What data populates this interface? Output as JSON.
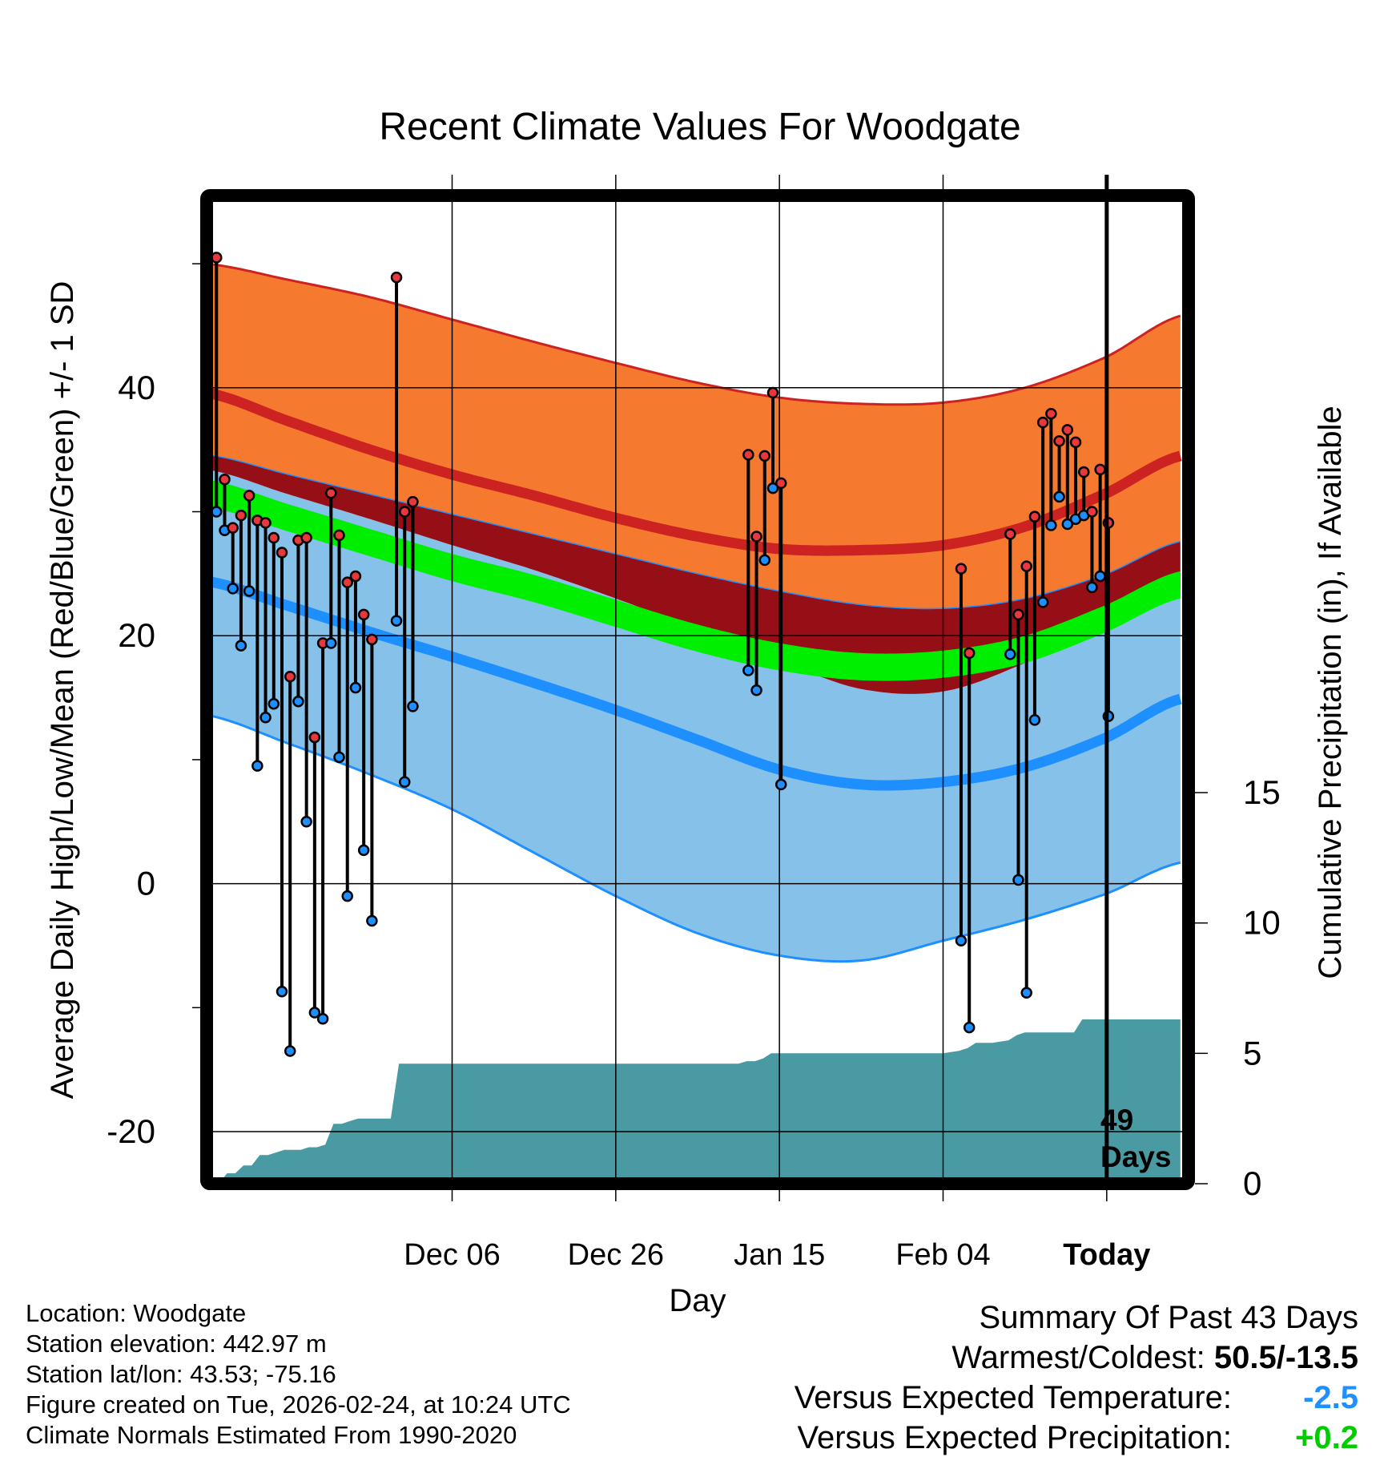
{
  "title": "Recent Climate Values For Woodgate",
  "chart_data": {
    "type": "line",
    "title": "Recent Climate Values For Woodgate",
    "xlabel": "Day",
    "ylabel": "Average Daily High/Low/Mean (Red/Blue/Green) +/- 1 SD",
    "ylabel_right": "Cumulative Precipitation (in), If Available",
    "xlim_days": [
      -110,
      10
    ],
    "ylim": [
      -24.2,
      55.5
    ],
    "y2lim": [
      0,
      37.9
    ],
    "x_ticks": [
      {
        "day": -80,
        "label": "Dec 06"
      },
      {
        "day": -60,
        "label": "Dec 26"
      },
      {
        "day": -40,
        "label": "Jan 15"
      },
      {
        "day": -20,
        "label": "Feb 04"
      },
      {
        "day": 0,
        "label": "Today"
      }
    ],
    "y_ticks": [
      -20,
      0,
      20,
      40
    ],
    "y_minor_ticks": [
      -10,
      10,
      30,
      50
    ],
    "y2_ticks": [
      0,
      5,
      10,
      15
    ],
    "today_marker": {
      "day": 0,
      "label_line1": "49",
      "label_line2": "Days"
    },
    "normals": {
      "days": [
        -110,
        -100,
        -90,
        -80,
        -70,
        -60,
        -50,
        -40,
        -30,
        -20,
        -10,
        0,
        9
      ],
      "high_mean": [
        39.6,
        37.3,
        35.0,
        33.0,
        31.3,
        29.5,
        28.0,
        27.0,
        26.9,
        27.3,
        28.8,
        31.5,
        34.5
      ],
      "high_upper": [
        50.0,
        48.7,
        47.3,
        45.5,
        43.7,
        42.0,
        40.4,
        39.2,
        38.7,
        38.8,
        40.0,
        42.5,
        45.8
      ],
      "high_lower": [
        34.6,
        33.0,
        31.4,
        29.8,
        28.2,
        26.6,
        25.0,
        23.6,
        22.5,
        22.2,
        23.0,
        25.0,
        27.6
      ],
      "mean_mean": [
        31.5,
        29.5,
        27.5,
        25.5,
        23.8,
        21.8,
        19.8,
        18.3,
        17.5,
        17.7,
        18.9,
        21.4,
        24.1
      ],
      "low_upper": [
        33.4,
        31.4,
        29.4,
        27.3,
        25.3,
        23.0,
        20.5,
        18.0,
        15.7,
        15.5,
        17.8,
        21.0,
        23.8
      ],
      "low_mean": [
        24.4,
        22.4,
        20.3,
        18.3,
        16.2,
        14.0,
        11.6,
        9.2,
        8.0,
        8.2,
        9.4,
        11.8,
        14.9
      ],
      "low_lower": [
        13.6,
        11.3,
        8.8,
        6.0,
        2.5,
        -1.0,
        -4.0,
        -5.8,
        -6.2,
        -4.6,
        -2.9,
        -0.8,
        1.7
      ]
    },
    "colors": {
      "high_band": "#f57a2f",
      "high_line": "#cc2222",
      "overlap_band": "#960e16",
      "mean_band": "#00ee00",
      "low_band": "#85c1e8",
      "low_line": "#1e8fff",
      "precip_fill": "#4a9aa3",
      "high_point": "#e8383e",
      "low_point": "#1e8fff"
    },
    "observations": [
      {
        "day": -108.8,
        "high": 50.5,
        "low": 30.0
      },
      {
        "day": -107.8,
        "high": 32.6,
        "low": 28.5
      },
      {
        "day": -106.8,
        "high": 28.7,
        "low": 23.8
      },
      {
        "day": -105.8,
        "high": 29.7,
        "low": 19.2
      },
      {
        "day": -104.8,
        "high": 31.3,
        "low": 23.6
      },
      {
        "day": -103.8,
        "high": 29.3,
        "low": 9.5
      },
      {
        "day": -102.8,
        "high": 29.1,
        "low": 13.4
      },
      {
        "day": -101.8,
        "high": 27.9,
        "low": 14.5
      },
      {
        "day": -100.8,
        "high": 26.7,
        "low": -8.7
      },
      {
        "day": -99.8,
        "high": 16.7,
        "low": -13.5
      },
      {
        "day": -98.8,
        "high": 27.7,
        "low": 14.7
      },
      {
        "day": -97.8,
        "high": 27.9,
        "low": 5.0
      },
      {
        "day": -96.8,
        "high": 11.8,
        "low": -10.4
      },
      {
        "day": -95.8,
        "high": 19.4,
        "low": -10.9
      },
      {
        "day": -94.8,
        "high": 31.5,
        "low": 19.4
      },
      {
        "day": -93.8,
        "high": 28.1,
        "low": 10.2
      },
      {
        "day": -92.8,
        "high": 24.3,
        "low": -1.0
      },
      {
        "day": -91.8,
        "high": 24.8,
        "low": 15.8
      },
      {
        "day": -90.8,
        "high": 21.7,
        "low": 2.7
      },
      {
        "day": -89.8,
        "high": 19.7,
        "low": -3.0
      },
      {
        "day": -86.8,
        "high": 48.9,
        "low": 21.2
      },
      {
        "day": -85.8,
        "high": 30.0,
        "low": 8.2
      },
      {
        "day": -84.8,
        "high": 30.8,
        "low": 14.3
      },
      {
        "day": -43.8,
        "high": 34.6,
        "low": 17.2
      },
      {
        "day": -42.8,
        "high": 28.0,
        "low": 15.6
      },
      {
        "day": -41.8,
        "high": 34.5,
        "low": 26.1
      },
      {
        "day": -40.8,
        "high": 39.6,
        "low": 31.9
      },
      {
        "day": -39.8,
        "high": 32.3,
        "low": 8.0
      },
      {
        "day": -17.8,
        "high": 25.4,
        "low": -4.6
      },
      {
        "day": -16.8,
        "high": 18.6,
        "low": -11.6
      },
      {
        "day": -11.8,
        "high": 28.2,
        "low": 18.5
      },
      {
        "day": -10.8,
        "high": 21.7,
        "low": 0.3
      },
      {
        "day": -9.8,
        "high": 25.6,
        "low": -8.8
      },
      {
        "day": -8.8,
        "high": 29.6,
        "low": 13.2
      },
      {
        "day": -7.8,
        "high": 37.2,
        "low": 22.7
      },
      {
        "day": -6.8,
        "high": 37.9,
        "low": 28.9
      },
      {
        "day": -5.8,
        "high": 35.7,
        "low": 31.2
      },
      {
        "day": -4.8,
        "high": 36.6,
        "low": 29.0
      },
      {
        "day": -3.8,
        "high": 35.6,
        "low": 29.4
      },
      {
        "day": -2.8,
        "high": 33.2,
        "low": 29.7
      },
      {
        "day": -1.8,
        "high": 30.0,
        "low": 23.9
      },
      {
        "day": -0.8,
        "high": 33.4,
        "low": 24.8
      },
      {
        "day": 0.2,
        "high": 29.1,
        "low": 13.5
      }
    ],
    "precip_cumulative": {
      "days": [
        -110,
        -108.5,
        -107.5,
        -106.5,
        -105.5,
        -104.5,
        -103.5,
        -102.5,
        -101.5,
        -100.5,
        -99.5,
        -98.5,
        -97.5,
        -96.5,
        -95.5,
        -94.5,
        -93.5,
        -92.5,
        -91.5,
        -90.5,
        -89.5,
        -88.5,
        -87.5,
        -86.5,
        -85.5,
        -84.5,
        -83.5,
        -74,
        -64,
        -54,
        -45,
        -44,
        -43,
        -42,
        -41,
        -40,
        -39,
        -30,
        -20,
        -18,
        -17,
        -16,
        -15,
        -14,
        -12,
        -11,
        -10,
        -9,
        -8,
        -7,
        -6,
        -5,
        -4,
        -3,
        -2,
        -1,
        0,
        9
      ],
      "values": [
        0,
        0,
        0.4,
        0.4,
        0.7,
        0.7,
        1.1,
        1.1,
        1.2,
        1.3,
        1.3,
        1.3,
        1.4,
        1.4,
        1.5,
        2.3,
        2.3,
        2.4,
        2.5,
        2.5,
        2.5,
        2.5,
        2.5,
        4.6,
        4.6,
        4.6,
        4.6,
        4.6,
        4.6,
        4.6,
        4.6,
        4.7,
        4.7,
        4.8,
        5.0,
        5.0,
        5.0,
        5.0,
        5.0,
        5.1,
        5.2,
        5.4,
        5.4,
        5.4,
        5.5,
        5.7,
        5.8,
        5.8,
        5.8,
        5.8,
        5.8,
        5.8,
        5.8,
        6.3,
        6.3,
        6.3,
        6.3,
        6.3
      ]
    }
  },
  "info": {
    "location": "Location: Woodgate",
    "elevation": "Station elevation: 442.97 m",
    "latlon": "Station lat/lon: 43.53; -75.16",
    "created": "Figure created on Tue, 2026-02-24, at 10:24 UTC",
    "normals": "Climate Normals Estimated From 1990-2020"
  },
  "summary": {
    "heading": "Summary Of Past 43 Days",
    "warm_cold_label": "Warmest/Coldest: ",
    "warm_cold_value": "50.5/-13.5",
    "temp_label": "Versus Expected Temperature:",
    "temp_value": "-2.5",
    "precip_label": "Versus Expected Precipitation:",
    "precip_value": "+0.2"
  }
}
